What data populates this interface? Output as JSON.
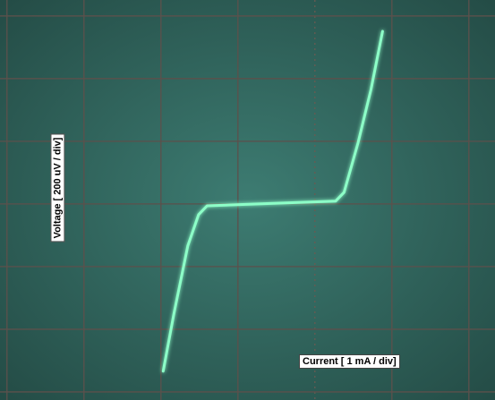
{
  "chart_data": {
    "type": "line",
    "x_label": "Current [ 1 mA / div]",
    "y_label": "Voltage [ 200 uV / div]",
    "x": [
      -1.97,
      -1.83,
      -1.65,
      -1.51,
      -1.4,
      0.27,
      0.38,
      0.56,
      0.73,
      0.88
    ],
    "values": [
      -534,
      -349,
      -134,
      -34,
      -6,
      9,
      37,
      194,
      366,
      551
    ],
    "color": "#8dffc8",
    "xlim": [
      -4.09,
      2.34
    ],
    "ylim": [
      -626,
      651
    ],
    "xticks": [
      -4,
      -3,
      -2,
      -1,
      0,
      1,
      2
    ],
    "yticks": [
      -600,
      -400,
      -200,
      0,
      200,
      400,
      600
    ],
    "grid": true
  }
}
